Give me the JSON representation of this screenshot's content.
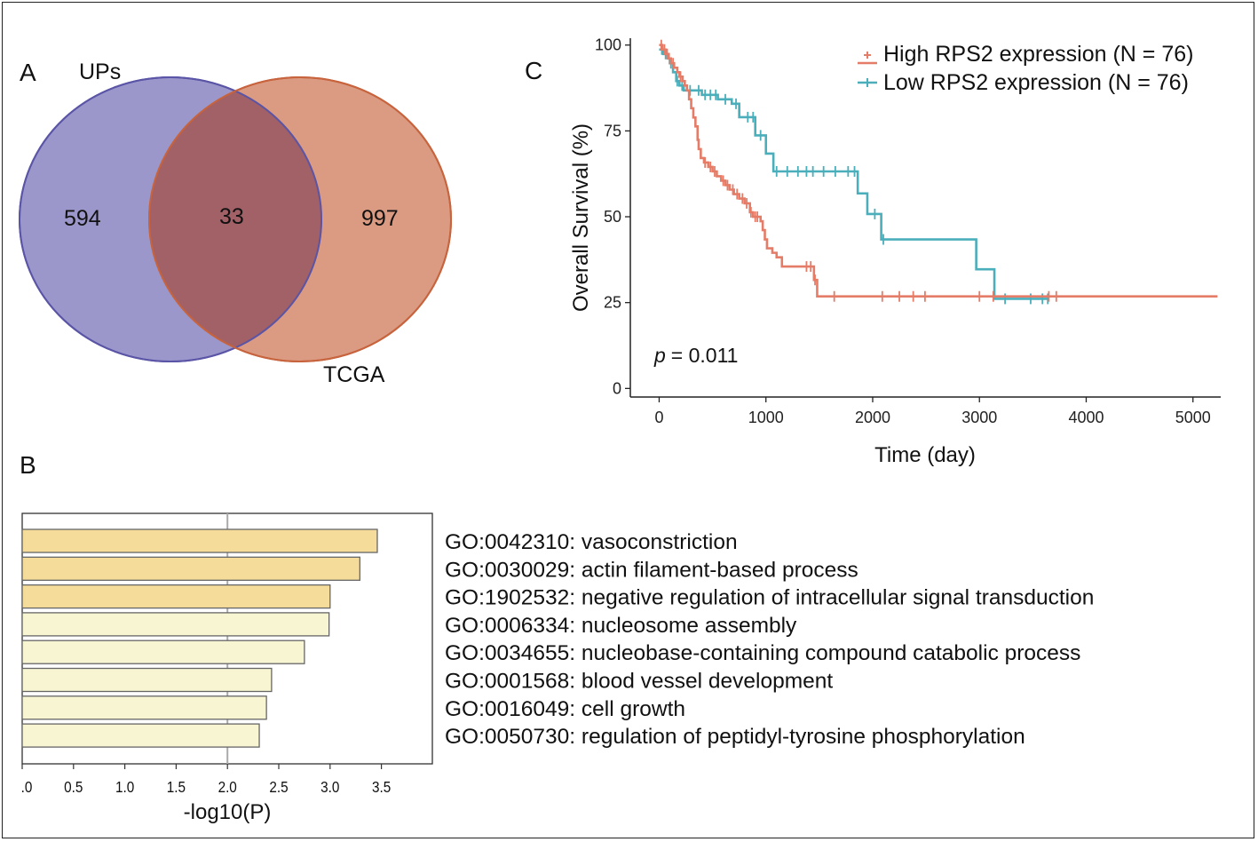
{
  "panels": {
    "a": "A",
    "b": "B",
    "c": "C"
  },
  "venn": {
    "left": {
      "label": "UPs",
      "count": "594",
      "color": "#7b74b9"
    },
    "right": {
      "label": "TCGA",
      "count": "997",
      "color": "#cf7a58"
    },
    "overlap": {
      "count": "33",
      "color": "#a05e66"
    }
  },
  "chart_data": [
    {
      "type": "bar",
      "orientation": "horizontal",
      "title": "",
      "xlabel": "-log10(P)",
      "xlim": [
        0,
        4.0
      ],
      "reference_line": 2.0,
      "x_ticks": [
        ".0",
        "0.5",
        "1.0",
        "1.5",
        "2.0",
        "2.5",
        "3.0",
        "3.5"
      ],
      "categories": [
        "GO:0042310: vasoconstriction",
        "GO:0030029: actin filament-based process",
        "GO:1902532: negative regulation of intracellular signal transduction",
        "GO:0006334: nucleosome assembly",
        "GO:0034655: nucleobase-containing compound catabolic process",
        "GO:0001568: blood vessel development",
        "GO:0016049: cell growth",
        "GO:0050730: regulation of peptidyl-tyrosine phosphorylation"
      ],
      "values": [
        3.46,
        3.29,
        3.0,
        2.99,
        2.75,
        2.43,
        2.38,
        2.31
      ],
      "bar_colors": [
        "#f5dc9a",
        "#f5dc9a",
        "#f5dc9a",
        "#f8f5d2",
        "#f8f5d2",
        "#f8f5d2",
        "#f8f5d2",
        "#f8f5d2"
      ]
    },
    {
      "type": "line",
      "subtype": "kaplan-meier",
      "xlabel": "Time (day)",
      "ylabel": "Overall Survival (%)",
      "xlim": [
        -270,
        5260
      ],
      "ylim": [
        -2.5,
        102
      ],
      "x_ticks": [
        0,
        1000,
        2000,
        3000,
        4000,
        5000
      ],
      "y_ticks": [
        0,
        25,
        50,
        75,
        100
      ],
      "p_label": "p",
      "p_value": "= 0.011",
      "series": [
        {
          "name": "High RPS2 expression (N = 76)",
          "color": "#e47c68",
          "steps": [
            [
              0,
              100
            ],
            [
              30,
              98.7
            ],
            [
              60,
              97.4
            ],
            [
              90,
              96.1
            ],
            [
              110,
              94.7
            ],
            [
              140,
              93.4
            ],
            [
              170,
              92.1
            ],
            [
              190,
              90.8
            ],
            [
              220,
              89.5
            ],
            [
              240,
              88.2
            ],
            [
              260,
              86.8
            ],
            [
              280,
              84.2
            ],
            [
              300,
              81.6
            ],
            [
              320,
              78.9
            ],
            [
              340,
              76.3
            ],
            [
              360,
              72.4
            ],
            [
              370,
              69.7
            ],
            [
              390,
              67.1
            ],
            [
              420,
              65.8
            ],
            [
              460,
              64.5
            ],
            [
              500,
              63.2
            ],
            [
              540,
              61.8
            ],
            [
              580,
              60.5
            ],
            [
              620,
              59.2
            ],
            [
              660,
              57.9
            ],
            [
              700,
              56.6
            ],
            [
              750,
              55.3
            ],
            [
              800,
              53.9
            ],
            [
              850,
              51.3
            ],
            [
              880,
              50.0
            ],
            [
              950,
              48.7
            ],
            [
              970,
              46.1
            ],
            [
              990,
              43.4
            ],
            [
              1010,
              40.8
            ],
            [
              1060,
              39.5
            ],
            [
              1100,
              38.2
            ],
            [
              1150,
              35.5
            ],
            [
              1450,
              31.6
            ],
            [
              1480,
              26.8
            ],
            [
              5230,
              26.8
            ]
          ],
          "censor_times": [
            20,
            50,
            75,
            130,
            200,
            430,
            480,
            520,
            600,
            640,
            690,
            730,
            780,
            820,
            860,
            900,
            920,
            1380,
            1420,
            1460,
            1640,
            2090,
            2250,
            2380,
            2490,
            3000,
            3130,
            3650,
            3720
          ]
        },
        {
          "name": "Low RPS2 expression (N = 76)",
          "color": "#4aaebb",
          "steps": [
            [
              0,
              98.7
            ],
            [
              40,
              97.4
            ],
            [
              80,
              96.1
            ],
            [
              100,
              94.7
            ],
            [
              130,
              92.1
            ],
            [
              160,
              89.5
            ],
            [
              190,
              88.2
            ],
            [
              230,
              86.8
            ],
            [
              400,
              85.5
            ],
            [
              550,
              84.2
            ],
            [
              680,
              82.9
            ],
            [
              750,
              79.0
            ],
            [
              900,
              73.7
            ],
            [
              1000,
              68.4
            ],
            [
              1070,
              63.2
            ],
            [
              1860,
              56.8
            ],
            [
              1950,
              50.8
            ],
            [
              2080,
              43.4
            ],
            [
              2970,
              34.7
            ],
            [
              3140,
              26.1
            ],
            [
              3640,
              26.1
            ]
          ],
          "censor_times": [
            25,
            60,
            110,
            170,
            215,
            290,
            370,
            430,
            480,
            530,
            620,
            720,
            830,
            880,
            950,
            1100,
            1200,
            1300,
            1380,
            1440,
            1540,
            1650,
            1770,
            1830,
            2020,
            2100,
            3240,
            3480,
            3590,
            3640
          ]
        }
      ]
    }
  ]
}
